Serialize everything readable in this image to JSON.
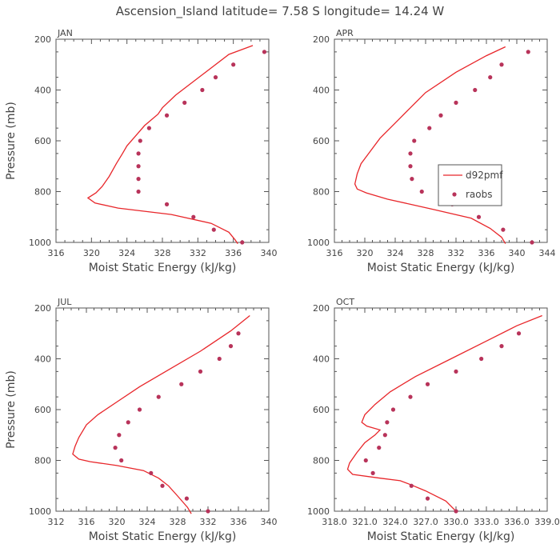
{
  "figure": {
    "title": "Ascension_Island   latitude= 7.58 S longitude= 14.24 W"
  },
  "chart_data": [
    {
      "type": "line",
      "panel_label": "JAN",
      "xlabel": "Moist Static Energy (kJ/kg)",
      "ylabel": "Pressure (mb)",
      "xlim": [
        316,
        340
      ],
      "ylim": [
        1000,
        200
      ],
      "xticks": [
        316,
        320,
        324,
        328,
        332,
        336,
        340
      ],
      "xtick_labels": [
        "316",
        "320",
        "324",
        "328",
        "332",
        "336",
        "340"
      ],
      "yticks": [
        200,
        400,
        600,
        800,
        1000
      ],
      "ytick_labels": [
        "200",
        "400",
        "600",
        "800",
        "1000"
      ],
      "series": [
        {
          "name": "d92pmf",
          "style": "line",
          "color": "#e8262a",
          "points": [
            [
              338.2,
              225
            ],
            [
              335.5,
              260
            ],
            [
              332.5,
              340
            ],
            [
              329.5,
              420
            ],
            [
              328,
              470
            ],
            [
              327.5,
              495
            ],
            [
              326,
              540
            ],
            [
              325,
              580
            ],
            [
              324,
              620
            ],
            [
              323.5,
              650
            ],
            [
              322.8,
              690
            ],
            [
              322,
              740
            ],
            [
              321.2,
              780
            ],
            [
              320.5,
              805
            ],
            [
              319.6,
              825
            ],
            [
              320.4,
              845
            ],
            [
              323,
              865
            ],
            [
              329,
              890
            ],
            [
              333.5,
              925
            ],
            [
              335.5,
              960
            ],
            [
              336.2,
              990
            ],
            [
              336.5,
              1005
            ]
          ]
        },
        {
          "name": "raobs",
          "style": "markers",
          "color": "#b8335a",
          "points": [
            [
              339.5,
              250
            ],
            [
              336,
              300
            ],
            [
              334,
              350
            ],
            [
              332.5,
              400
            ],
            [
              330.5,
              450
            ],
            [
              328.5,
              500
            ],
            [
              326.5,
              550
            ],
            [
              325.5,
              600
            ],
            [
              325.3,
              650
            ],
            [
              325.3,
              700
            ],
            [
              325.3,
              750
            ],
            [
              325.3,
              800
            ],
            [
              328.5,
              850
            ],
            [
              331.5,
              900
            ],
            [
              333.8,
              950
            ],
            [
              337,
              1000
            ]
          ]
        }
      ]
    },
    {
      "type": "line",
      "panel_label": "APR",
      "xlabel": "Moist Static Energy (kJ/kg)",
      "ylabel": "",
      "xlim": [
        316,
        344
      ],
      "ylim": [
        1000,
        200
      ],
      "xticks": [
        316,
        320,
        324,
        328,
        332,
        336,
        340,
        344
      ],
      "xtick_labels": [
        "316",
        "320",
        "324",
        "328",
        "332",
        "336",
        "340",
        "344"
      ],
      "yticks": [
        200,
        400,
        600,
        800,
        1000
      ],
      "ytick_labels": [
        "200",
        "400",
        "600",
        "800",
        "1000"
      ],
      "legend": {
        "position": "middle-right",
        "entries": [
          "d92pmf",
          "raobs"
        ]
      },
      "series": [
        {
          "name": "d92pmf",
          "style": "line",
          "color": "#e8262a",
          "points": [
            [
              338.5,
              230
            ],
            [
              336,
              265
            ],
            [
              332,
              330
            ],
            [
              328,
              410
            ],
            [
              326,
              470
            ],
            [
              324,
              530
            ],
            [
              322,
              590
            ],
            [
              320.5,
              650
            ],
            [
              319.5,
              690
            ],
            [
              319,
              730
            ],
            [
              318.7,
              770
            ],
            [
              319,
              790
            ],
            [
              320.2,
              805
            ],
            [
              323,
              830
            ],
            [
              329,
              870
            ],
            [
              334,
              905
            ],
            [
              336.5,
              945
            ],
            [
              338,
              980
            ],
            [
              338.5,
              1005
            ]
          ]
        },
        {
          "name": "raobs",
          "style": "markers",
          "color": "#b8335a",
          "points": [
            [
              341.5,
              250
            ],
            [
              338,
              300
            ],
            [
              336.5,
              350
            ],
            [
              334.5,
              400
            ],
            [
              332,
              450
            ],
            [
              330,
              500
            ],
            [
              328.5,
              550
            ],
            [
              326.5,
              600
            ],
            [
              326,
              650
            ],
            [
              326,
              700
            ],
            [
              326.2,
              750
            ],
            [
              327.5,
              800
            ],
            [
              331.5,
              850
            ],
            [
              335,
              900
            ],
            [
              338.2,
              950
            ],
            [
              342,
              1000
            ]
          ]
        }
      ]
    },
    {
      "type": "line",
      "panel_label": "JUL",
      "xlabel": "Moist Static Energy (kJ/kg)",
      "ylabel": "Pressure (mb)",
      "xlim": [
        312,
        340
      ],
      "ylim": [
        1000,
        200
      ],
      "xticks": [
        312,
        316,
        320,
        324,
        328,
        332,
        336,
        340
      ],
      "xtick_labels": [
        "312",
        "316",
        "320",
        "324",
        "328",
        "332",
        "336",
        "340"
      ],
      "yticks": [
        200,
        400,
        600,
        800,
        1000
      ],
      "ytick_labels": [
        "200",
        "400",
        "600",
        "800",
        "1000"
      ],
      "series": [
        {
          "name": "d92pmf",
          "style": "line",
          "color": "#e8262a",
          "points": [
            [
              337.5,
              230
            ],
            [
              335,
              290
            ],
            [
              331,
              370
            ],
            [
              327,
              440
            ],
            [
              323,
              510
            ],
            [
              320,
              570
            ],
            [
              317.5,
              620
            ],
            [
              316,
              660
            ],
            [
              315,
              710
            ],
            [
              314.5,
              745
            ],
            [
              314.2,
              775
            ],
            [
              315,
              795
            ],
            [
              316.5,
              805
            ],
            [
              320,
              820
            ],
            [
              323.5,
              840
            ],
            [
              325.5,
              870
            ],
            [
              326.8,
              900
            ],
            [
              328,
              940
            ],
            [
              329.3,
              985
            ],
            [
              329.8,
              1010
            ]
          ]
        },
        {
          "name": "raobs",
          "style": "markers",
          "color": "#b8335a",
          "points": [
            [
              336,
              300
            ],
            [
              335,
              350
            ],
            [
              333.5,
              400
            ],
            [
              331,
              450
            ],
            [
              328.5,
              500
            ],
            [
              325.5,
              550
            ],
            [
              323,
              600
            ],
            [
              321.5,
              650
            ],
            [
              320.3,
              700
            ],
            [
              319.8,
              750
            ],
            [
              320.6,
              800
            ],
            [
              324.5,
              850
            ],
            [
              326,
              900
            ],
            [
              329.2,
              950
            ],
            [
              332,
              1000
            ]
          ]
        }
      ]
    },
    {
      "type": "line",
      "panel_label": "OCT",
      "xlabel": "Moist Static Energy (kJ/kg)",
      "ylabel": "",
      "xlim": [
        318.0,
        339.0
      ],
      "ylim": [
        1000,
        200
      ],
      "xticks": [
        318.0,
        321.0,
        324.0,
        327.0,
        330.0,
        333.0,
        336.0,
        339.0
      ],
      "xtick_labels": [
        "318.0",
        "321.0",
        "324.0",
        "327.0",
        "330.0",
        "333.0",
        "336.0",
        "339.0"
      ],
      "yticks": [
        200,
        400,
        600,
        800,
        1000
      ],
      "ytick_labels": [
        "200",
        "400",
        "600",
        "800",
        "1000"
      ],
      "series": [
        {
          "name": "d92pmf",
          "style": "line",
          "color": "#e8262a",
          "points": [
            [
              338.5,
              230
            ],
            [
              336,
              270
            ],
            [
              333,
              330
            ],
            [
              329.5,
              400
            ],
            [
              326,
              470
            ],
            [
              323.5,
              530
            ],
            [
              322,
              580
            ],
            [
              321,
              620
            ],
            [
              320.7,
              650
            ],
            [
              321.2,
              665
            ],
            [
              322.5,
              680
            ],
            [
              322,
              700
            ],
            [
              321,
              730
            ],
            [
              320.2,
              770
            ],
            [
              319.5,
              810
            ],
            [
              319.3,
              835
            ],
            [
              319.8,
              855
            ],
            [
              322.5,
              870
            ],
            [
              324.5,
              880
            ],
            [
              325.5,
              895
            ],
            [
              327,
              920
            ],
            [
              329,
              960
            ],
            [
              330,
              1000
            ]
          ]
        },
        {
          "name": "raobs",
          "style": "markers",
          "color": "#b8335a",
          "points": [
            [
              336.2,
              300
            ],
            [
              334.5,
              350
            ],
            [
              332.5,
              400
            ],
            [
              330,
              450
            ],
            [
              327.2,
              500
            ],
            [
              325.5,
              550
            ],
            [
              323.8,
              600
            ],
            [
              323.2,
              650
            ],
            [
              323,
              700
            ],
            [
              322.4,
              750
            ],
            [
              321.1,
              800
            ],
            [
              321.8,
              850
            ],
            [
              325.6,
              900
            ],
            [
              327.2,
              950
            ],
            [
              330,
              1000
            ]
          ]
        }
      ]
    }
  ]
}
